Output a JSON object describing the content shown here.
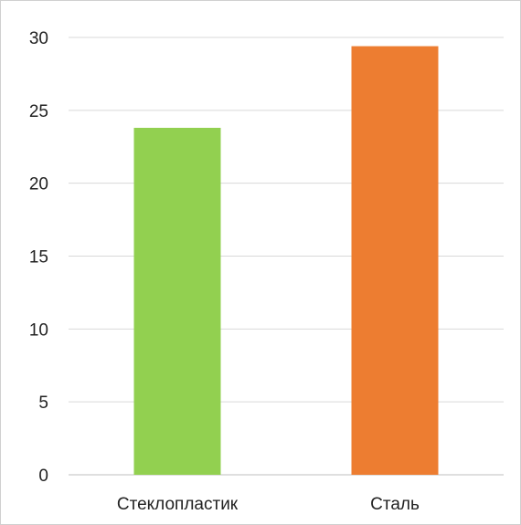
{
  "chart_data": {
    "type": "bar",
    "categories": [
      "Стеклопластик",
      "Сталь"
    ],
    "values": [
      23.8,
      29.4
    ],
    "colors": [
      "#92d050",
      "#ed7d31"
    ],
    "ylim": [
      0,
      30
    ],
    "yticks": [
      0,
      5,
      10,
      15,
      20,
      25,
      30
    ],
    "grid": true,
    "legend": "none"
  }
}
